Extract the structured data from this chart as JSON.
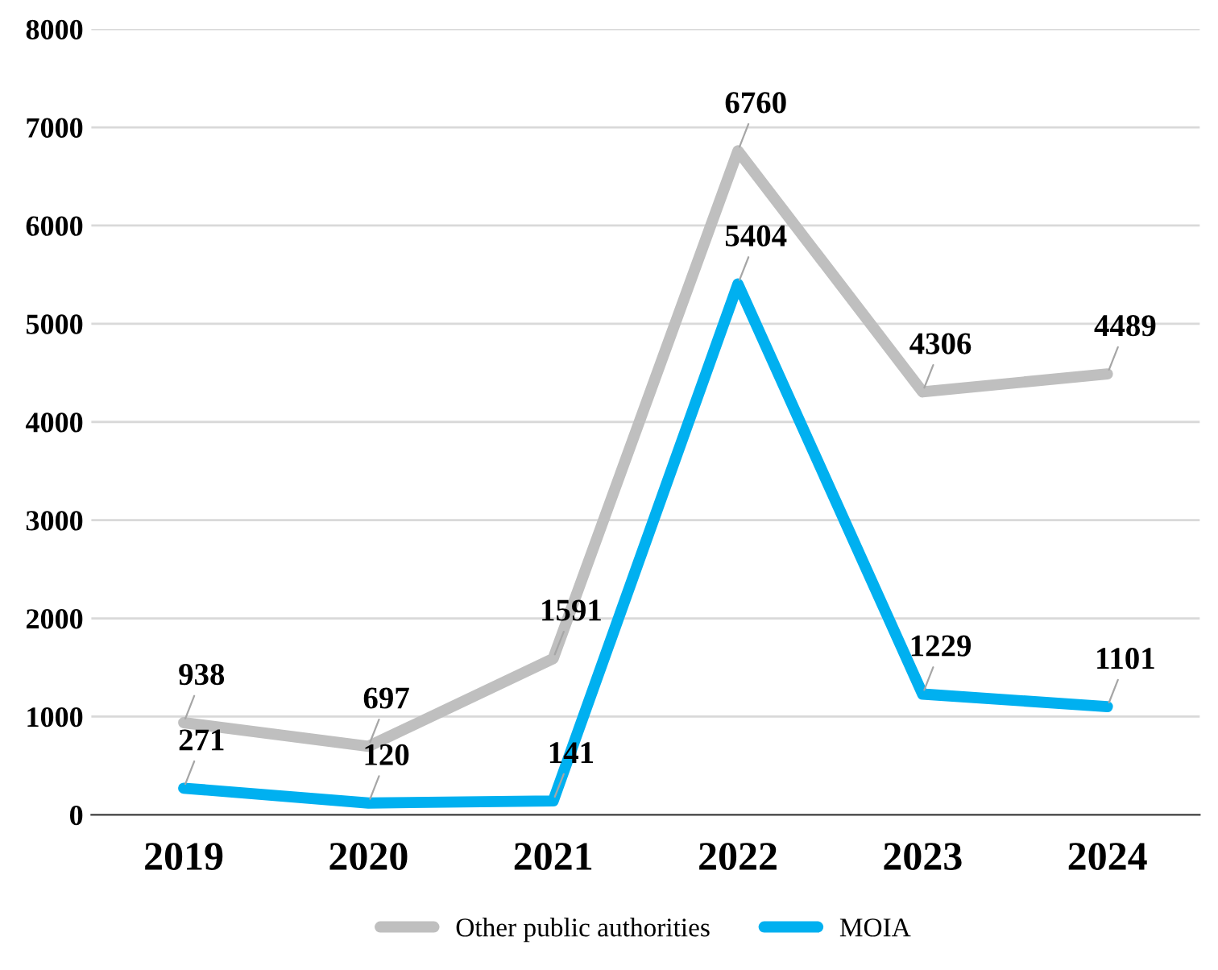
{
  "chart_data": {
    "type": "line",
    "categories": [
      "2019",
      "2020",
      "2021",
      "2022",
      "2023",
      "2024"
    ],
    "series": [
      {
        "name": "Other public authorities",
        "color": "#bfbfbf",
        "values": [
          938,
          697,
          1591,
          6760,
          4306,
          4489
        ]
      },
      {
        "name": "MOIA",
        "color": "#00b0f0",
        "values": [
          271,
          120,
          141,
          5404,
          1229,
          1101
        ]
      }
    ],
    "ylim": [
      0,
      8000
    ],
    "yticks": [
      0,
      1000,
      2000,
      3000,
      4000,
      5000,
      6000,
      7000,
      8000
    ],
    "grid": "y",
    "legend": "bottom",
    "data_labels": true,
    "marker": "none",
    "line_style": "solid"
  }
}
